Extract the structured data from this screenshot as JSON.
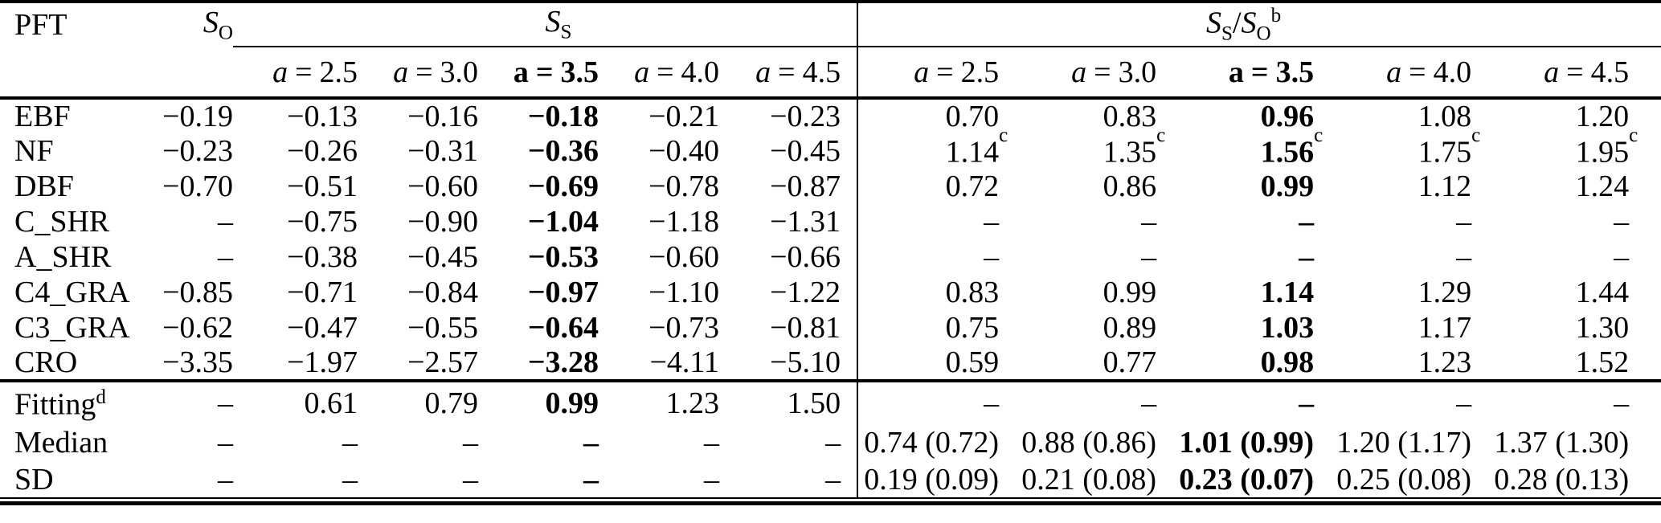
{
  "colors": {
    "text": "#000000",
    "background": "#ffffff",
    "rule": "#000000"
  },
  "table": {
    "header": {
      "pft_label": "PFT",
      "so": {
        "s": "S",
        "sub": "O"
      },
      "ss": {
        "s": "S",
        "sub": "S"
      },
      "ratio": {
        "s1": "S",
        "sub1": "S",
        "slash": "/",
        "s2": "S",
        "sub2": "O",
        "sup": "b"
      },
      "a_var": "a",
      "eq": "=",
      "a_values": [
        "2.5",
        "3.0",
        "3.5",
        "4.0",
        "4.5"
      ],
      "bold_a_index": 2
    },
    "rows": [
      {
        "pft": "EBF",
        "so": "−0.19",
        "ss": [
          "−0.13",
          "−0.16",
          "−0.18",
          "−0.21",
          "−0.23"
        ],
        "ratio": [
          "0.70",
          "0.83",
          "0.96",
          "1.08",
          "1.20"
        ]
      },
      {
        "pft": "NF",
        "so": "−0.23",
        "ss": [
          "−0.26",
          "−0.31",
          "−0.36",
          "−0.40",
          "−0.45"
        ],
        "ratio": [
          {
            "v": "1.14",
            "sup": "c"
          },
          {
            "v": "1.35",
            "sup": "c"
          },
          {
            "v": "1.56",
            "sup": "c"
          },
          {
            "v": "1.75",
            "sup": "c"
          },
          {
            "v": "1.95",
            "sup": "c"
          }
        ]
      },
      {
        "pft": "DBF",
        "so": "−0.70",
        "ss": [
          "−0.51",
          "−0.60",
          "−0.69",
          "−0.78",
          "−0.87"
        ],
        "ratio": [
          "0.72",
          "0.86",
          "0.99",
          "1.12",
          "1.24"
        ]
      },
      {
        "pft": "C_SHR",
        "so": "–",
        "ss": [
          "−0.75",
          "−0.90",
          "−1.04",
          "−1.18",
          "−1.31"
        ],
        "ratio": [
          "–",
          "–",
          "–",
          "–",
          "–"
        ]
      },
      {
        "pft": "A_SHR",
        "so": "–",
        "ss": [
          "−0.38",
          "−0.45",
          "−0.53",
          "−0.60",
          "−0.66"
        ],
        "ratio": [
          "–",
          "–",
          "–",
          "–",
          "–"
        ]
      },
      {
        "pft": "C4_GRA",
        "so": "−0.85",
        "ss": [
          "−0.71",
          "−0.84",
          "−0.97",
          "−1.10",
          "−1.22"
        ],
        "ratio": [
          "0.83",
          "0.99",
          "1.14",
          "1.29",
          "1.44"
        ]
      },
      {
        "pft": "C3_GRA",
        "so": "−0.62",
        "ss": [
          "−0.47",
          "−0.55",
          "−0.64",
          "−0.73",
          "−0.81"
        ],
        "ratio": [
          "0.75",
          "0.89",
          "1.03",
          "1.17",
          "1.30"
        ]
      },
      {
        "pft": "CRO",
        "so": "−3.35",
        "ss": [
          "−1.97",
          "−2.57",
          "−3.28",
          "−4.11",
          "−5.10"
        ],
        "ratio": [
          "0.59",
          "0.77",
          "0.98",
          "1.23",
          "1.52"
        ]
      }
    ],
    "summary_rows": [
      {
        "label": "Fitting",
        "sup": "d",
        "so": "–",
        "ss": [
          "0.61",
          "0.79",
          "0.99",
          "1.23",
          "1.50"
        ],
        "ratio": [
          "–",
          "–",
          "–",
          "–",
          "–"
        ]
      },
      {
        "label": "Median",
        "so": "–",
        "ss": [
          "–",
          "–",
          "–",
          "–",
          "–"
        ],
        "ratio": [
          "0.74 (0.72)",
          "0.88 (0.86)",
          "1.01 (0.99)",
          "1.20 (1.17)",
          "1.37 (1.30)"
        ]
      },
      {
        "label": "SD",
        "so": "–",
        "ss": [
          "–",
          "–",
          "–",
          "–",
          "–"
        ],
        "ratio": [
          "0.19 (0.09)",
          "0.21 (0.08)",
          "0.23 (0.07)",
          "0.25 (0.08)",
          "0.28 (0.13)"
        ]
      }
    ]
  }
}
